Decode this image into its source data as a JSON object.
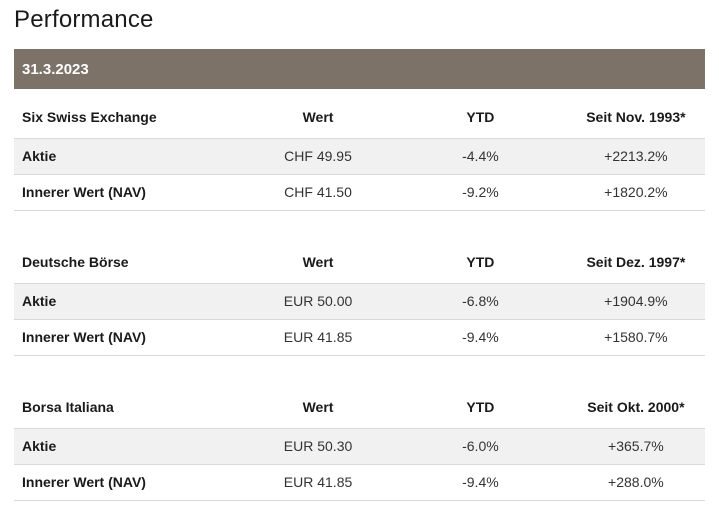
{
  "page": {
    "title": "Performance"
  },
  "date_bar": {
    "label": "31.3.2023"
  },
  "colors": {
    "date_bar_bg": "#7c7268",
    "date_bar_text": "#ffffff",
    "alt_row_bg": "#f1f1f1",
    "row_border": "#d9d9d9",
    "title_text": "#1a1a1a",
    "value_text": "#333333"
  },
  "tables": [
    {
      "name": "Six Swiss Exchange",
      "columns": [
        "Wert",
        "YTD",
        "Seit Nov. 1993*"
      ],
      "rows": [
        {
          "label": "Aktie",
          "wert": "CHF 49.95",
          "ytd": "-4.4%",
          "seit": "+2213.2%"
        },
        {
          "label": "Innerer Wert (NAV)",
          "wert": "CHF 41.50",
          "ytd": "-9.2%",
          "seit": "+1820.2%"
        }
      ]
    },
    {
      "name": "Deutsche Börse",
      "columns": [
        "Wert",
        "YTD",
        "Seit Dez. 1997*"
      ],
      "rows": [
        {
          "label": "Aktie",
          "wert": "EUR 50.00",
          "ytd": "-6.8%",
          "seit": "+1904.9%"
        },
        {
          "label": "Innerer Wert (NAV)",
          "wert": "EUR 41.85",
          "ytd": "-9.4%",
          "seit": "+1580.7%"
        }
      ]
    },
    {
      "name": "Borsa Italiana",
      "columns": [
        "Wert",
        "YTD",
        "Seit Okt. 2000*"
      ],
      "rows": [
        {
          "label": "Aktie",
          "wert": "EUR 50.30",
          "ytd": "-6.0%",
          "seit": "+365.7%"
        },
        {
          "label": "Innerer Wert (NAV)",
          "wert": "EUR 41.85",
          "ytd": "-9.4%",
          "seit": "+288.0%"
        }
      ]
    }
  ]
}
